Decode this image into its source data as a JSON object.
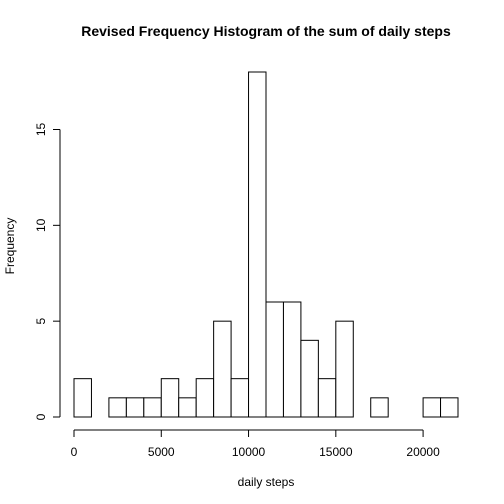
{
  "chart_data": {
    "type": "bar",
    "title": "Revised Frequency Histogram of the sum of daily steps",
    "xlabel": "daily steps",
    "ylabel": "Frequency",
    "bin_width": 1000,
    "bin_starts": [
      0,
      1000,
      2000,
      3000,
      4000,
      5000,
      6000,
      7000,
      8000,
      9000,
      10000,
      11000,
      12000,
      13000,
      14000,
      15000,
      16000,
      17000,
      18000,
      19000,
      20000,
      21000
    ],
    "values": [
      2,
      0,
      1,
      1,
      1,
      2,
      1,
      2,
      5,
      2,
      18,
      6,
      6,
      4,
      2,
      5,
      0,
      1,
      0,
      0,
      1,
      1
    ],
    "xlim": [
      0,
      22000
    ],
    "ylim": [
      0,
      18
    ],
    "x_ticks": [
      0,
      5000,
      10000,
      15000,
      20000
    ],
    "x_tick_labels": [
      "0",
      "5000",
      "10000",
      "15000",
      "20000"
    ],
    "y_ticks": [
      0,
      5,
      10,
      15
    ],
    "y_tick_labels": [
      "0",
      "5",
      "10",
      "15"
    ],
    "grid": false,
    "bar_fill": "#ffffff",
    "bar_stroke": "#000000"
  }
}
